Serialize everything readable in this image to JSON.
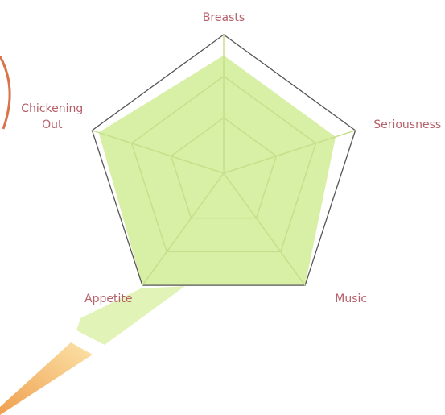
{
  "chart_data": {
    "type": "radar",
    "categories": [
      "Breasts",
      "Seriousness",
      "Music",
      "Appetite",
      "Chickening Out"
    ],
    "values": [
      85,
      85,
      100,
      100,
      95
    ],
    "color": "#d8efa6",
    "ylim": [
      0,
      100
    ],
    "yticks": [
      40,
      70,
      100
    ],
    "grid": true
  }
}
